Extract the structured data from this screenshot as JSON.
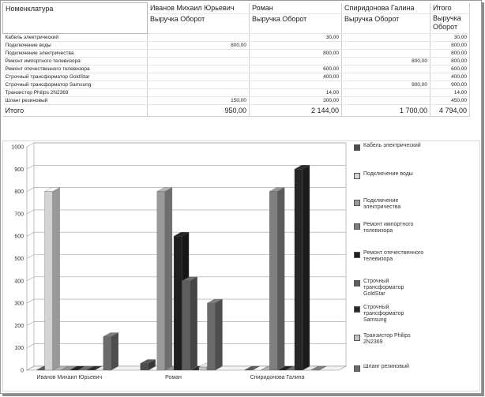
{
  "report": {
    "col_headers": [
      "Номенклатура",
      "Иванов Михаил Юрьевич",
      "Роман",
      "Спиридонова Галина",
      "Итого"
    ],
    "sub_headers": [
      "Выручка Оборот",
      "Выручка Оборот",
      "Выручка Оборот",
      "Выручка Оборот"
    ],
    "rows": [
      {
        "name": "Кабель электрический",
        "c1": "",
        "c2": "30,00",
        "c3": "",
        "total": "30,00"
      },
      {
        "name": "Подключение воды",
        "c1": "800,00",
        "c2": "",
        "c3": "",
        "total": "800,00"
      },
      {
        "name": "Подключение электричества",
        "c1": "",
        "c2": "800,00",
        "c3": "",
        "total": "800,00"
      },
      {
        "name": "Ремонт импортного телевизора",
        "c1": "",
        "c2": "",
        "c3": "800,00",
        "total": "800,00"
      },
      {
        "name": "Ремонт отечественного телевизора",
        "c1": "",
        "c2": "600,00",
        "c3": "",
        "total": "600,00"
      },
      {
        "name": "Строчный трансформатор GoldStar",
        "c1": "",
        "c2": "400,00",
        "c3": "",
        "total": "400,00"
      },
      {
        "name": "Строчный трансформатор Samsung",
        "c1": "",
        "c2": "",
        "c3": "900,00",
        "total": "900,00"
      },
      {
        "name": "Транзистор Philips 2N2369",
        "c1": "",
        "c2": "14,00",
        "c3": "",
        "total": "14,00"
      },
      {
        "name": "Шланг резиновый",
        "c1": "150,00",
        "c2": "300,00",
        "c3": "",
        "total": "450,00"
      }
    ],
    "total_row": {
      "name": "Итого",
      "c1": "950,00",
      "c2": "2 144,00",
      "c3": "1 700,00",
      "total": "4 794,00"
    }
  },
  "chart_data": {
    "type": "bar",
    "categories": [
      "Иванов Михаил Юрьевич",
      "Роман",
      "Спиридонова Галина"
    ],
    "ylim": [
      0,
      1000
    ],
    "yticks": [
      "0",
      "100",
      "200",
      "300",
      "400",
      "500",
      "600",
      "700",
      "800",
      "900",
      "1000"
    ],
    "series": [
      {
        "name": "Кабель электрический",
        "color": "#4d4d4d",
        "values": [
          0,
          30,
          0
        ]
      },
      {
        "name": "Подключение воды",
        "color": "#d4d4d4",
        "values": [
          800,
          0,
          0
        ]
      },
      {
        "name": "Подключение электричества",
        "color": "#9a9a9a",
        "values": [
          0,
          800,
          0
        ]
      },
      {
        "name": "Ремонт импортного телевизора",
        "color": "#7f7f7f",
        "values": [
          0,
          0,
          800
        ]
      },
      {
        "name": "Ремонт отечественного телевизора",
        "color": "#1e1e1e",
        "values": [
          0,
          600,
          0
        ]
      },
      {
        "name": "Строчный трансформатор GoldStar",
        "color": "#5e5e5e",
        "values": [
          0,
          400,
          0
        ]
      },
      {
        "name": "Строчный трансформатор Samsung",
        "color": "#262626",
        "values": [
          0,
          0,
          900
        ]
      },
      {
        "name": "Транзистор Philips 2N2369",
        "color": "#c4c4c4",
        "values": [
          0,
          14,
          0
        ]
      },
      {
        "name": "Шланг резиновый",
        "color": "#6b6b6b",
        "values": [
          150,
          300,
          0
        ]
      }
    ]
  }
}
